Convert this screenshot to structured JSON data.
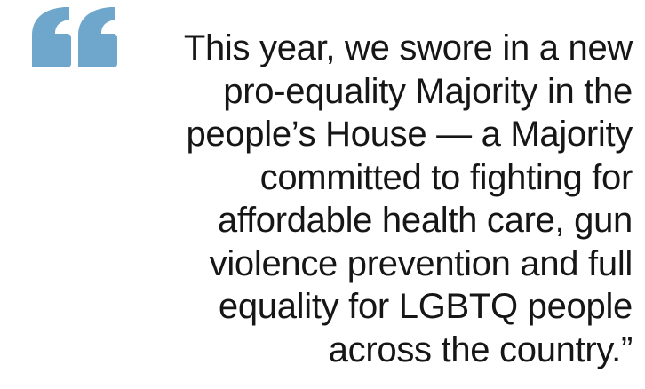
{
  "quote": {
    "lines": [
      "This year, we swore in a new",
      "pro-equality Majority in the",
      "people’s House — a Majority",
      "committed to fighting for",
      "affordable health care, gun",
      "violence prevention and full",
      "equality for LGBTQ people",
      "across the country.”"
    ]
  }
}
